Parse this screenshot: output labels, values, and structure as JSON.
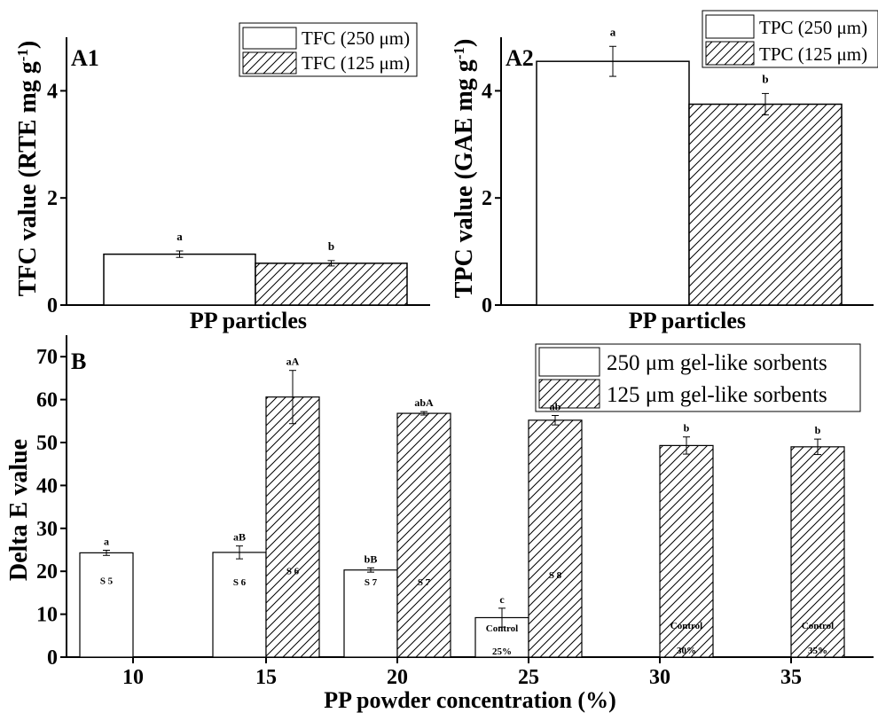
{
  "chart_data": [
    {
      "id": "A1",
      "type": "bar",
      "panel_label": "A1",
      "ylabel": "TFC value (RTE mg g",
      "ylabel_sup": "-1",
      "ylabel_close": ")",
      "xlabel": "PP particles",
      "ylim": [
        0,
        5
      ],
      "yticks": [
        "0",
        "2",
        "4"
      ],
      "series": [
        {
          "name": "TFC (250 μm)",
          "pattern": "blank",
          "value": 0.95,
          "error": 0.06,
          "letter": "a"
        },
        {
          "name": "TFC (125 μm)",
          "pattern": "hatch",
          "value": 0.78,
          "error": 0.05,
          "letter": "b"
        }
      ],
      "legend_position": "top-right"
    },
    {
      "id": "A2",
      "type": "bar",
      "panel_label": "A2",
      "ylabel": "TPC value (GAE mg g",
      "ylabel_sup": "-1",
      "ylabel_close": ")",
      "xlabel": "PP particles",
      "ylim": [
        0,
        5
      ],
      "yticks": [
        "0",
        "2",
        "4"
      ],
      "series": [
        {
          "name": "TPC (250 μm)",
          "pattern": "blank",
          "value": 4.55,
          "error": 0.28,
          "letter": "a"
        },
        {
          "name": "TPC (125 μm)",
          "pattern": "hatch",
          "value": 3.75,
          "error": 0.2,
          "letter": "b"
        }
      ],
      "legend_position": "top-right"
    },
    {
      "id": "B",
      "type": "bar",
      "panel_label": "B",
      "ylabel": "Delta E value",
      "xlabel": "PP powder concentration (%)",
      "ylim": [
        0,
        75
      ],
      "yticks": [
        "0",
        "10",
        "20",
        "30",
        "40",
        "50",
        "60",
        "70"
      ],
      "categories": [
        "10",
        "15",
        "20",
        "25",
        "30",
        "35"
      ],
      "legend_position": "top-right",
      "series": [
        {
          "name": "250 μm gel-like sorbents",
          "pattern": "blank",
          "values": [
            24.3,
            24.4,
            20.3,
            9.2,
            null,
            null
          ],
          "errors": [
            0.6,
            1.5,
            0.5,
            2.2,
            null,
            null
          ],
          "letters": [
            "a",
            "aB",
            "bB",
            "c",
            null,
            null
          ],
          "inner_labels": [
            "S 5",
            "S 6",
            "S 7",
            "Control",
            null,
            null
          ],
          "inner_labels_2": [
            null,
            null,
            null,
            "25%",
            null,
            null
          ]
        },
        {
          "name": "125 μm gel-like sorbents",
          "pattern": "hatch",
          "values": [
            null,
            60.6,
            56.8,
            55.2,
            49.3,
            49.0
          ],
          "errors": [
            null,
            6.2,
            0.4,
            1.1,
            2.0,
            1.8
          ],
          "letters": [
            null,
            "aA",
            "abA",
            "ab",
            "b",
            "b"
          ],
          "inner_labels": [
            null,
            "S 6",
            "S 7",
            "S 8",
            "Control",
            "Control"
          ],
          "inner_labels_2": [
            null,
            null,
            null,
            null,
            "30%",
            "35%"
          ]
        }
      ]
    }
  ]
}
